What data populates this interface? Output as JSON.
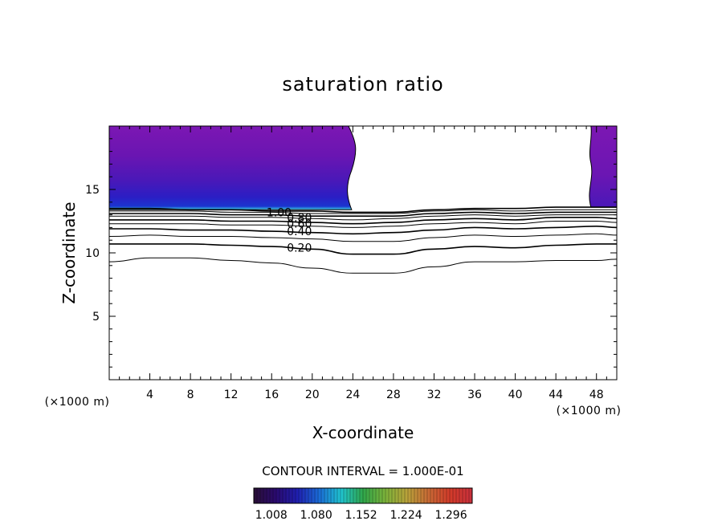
{
  "chart_data": {
    "type": "contour",
    "title": "saturation ratio",
    "xlabel": "X-coordinate",
    "ylabel": "Z-coordinate",
    "x_unit": "(×1000 m)",
    "y_unit": "(×1000 m)",
    "xlim": [
      0,
      50
    ],
    "ylim": [
      0,
      20
    ],
    "x_ticks": [
      4,
      8,
      12,
      16,
      20,
      24,
      28,
      32,
      36,
      40,
      44,
      48
    ],
    "y_ticks": [
      5,
      10,
      15
    ],
    "contour_interval_text": "CONTOUR INTERVAL = 1.000E-01",
    "contour_labels": [
      {
        "text": "1.00",
        "x": 15.5,
        "z": 13.2
      },
      {
        "text": "0.80",
        "x": 17.5,
        "z": 12.8
      },
      {
        "text": "0.60",
        "x": 17.5,
        "z": 12.3
      },
      {
        "text": "0.40",
        "x": 17.5,
        "z": 11.7
      },
      {
        "text": "0.20",
        "x": 17.5,
        "z": 10.4
      }
    ],
    "contour_lines": [
      {
        "level": 0.1,
        "points": [
          [
            0,
            9.3
          ],
          [
            4,
            9.6
          ],
          [
            8,
            9.6
          ],
          [
            12,
            9.4
          ],
          [
            16,
            9.2
          ],
          [
            20,
            8.8
          ],
          [
            24,
            8.4
          ],
          [
            28,
            8.4
          ],
          [
            32,
            8.9
          ],
          [
            36,
            9.3
          ],
          [
            40,
            9.3
          ],
          [
            44,
            9.4
          ],
          [
            48,
            9.4
          ],
          [
            50,
            9.5
          ]
        ]
      },
      {
        "level": 0.2,
        "points": [
          [
            0,
            10.7
          ],
          [
            4,
            10.7
          ],
          [
            8,
            10.7
          ],
          [
            12,
            10.6
          ],
          [
            16,
            10.5
          ],
          [
            20,
            10.3
          ],
          [
            24,
            9.9
          ],
          [
            28,
            9.9
          ],
          [
            32,
            10.3
          ],
          [
            36,
            10.5
          ],
          [
            40,
            10.4
          ],
          [
            44,
            10.6
          ],
          [
            48,
            10.7
          ],
          [
            50,
            10.7
          ]
        ]
      },
      {
        "level": 0.3,
        "points": [
          [
            0,
            11.3
          ],
          [
            4,
            11.4
          ],
          [
            8,
            11.3
          ],
          [
            12,
            11.3
          ],
          [
            16,
            11.2
          ],
          [
            20,
            11.1
          ],
          [
            24,
            10.9
          ],
          [
            28,
            10.9
          ],
          [
            32,
            11.2
          ],
          [
            36,
            11.4
          ],
          [
            40,
            11.3
          ],
          [
            44,
            11.4
          ],
          [
            48,
            11.5
          ],
          [
            50,
            11.4
          ]
        ]
      },
      {
        "level": 0.4,
        "points": [
          [
            0,
            11.9
          ],
          [
            4,
            11.9
          ],
          [
            8,
            11.8
          ],
          [
            12,
            11.8
          ],
          [
            16,
            11.7
          ],
          [
            20,
            11.6
          ],
          [
            24,
            11.5
          ],
          [
            28,
            11.6
          ],
          [
            32,
            11.8
          ],
          [
            36,
            12.0
          ],
          [
            40,
            11.9
          ],
          [
            44,
            12.0
          ],
          [
            48,
            12.1
          ],
          [
            50,
            12.0
          ]
        ]
      },
      {
        "level": 0.5,
        "points": [
          [
            0,
            12.3
          ],
          [
            4,
            12.3
          ],
          [
            8,
            12.3
          ],
          [
            12,
            12.2
          ],
          [
            16,
            12.2
          ],
          [
            20,
            12.1
          ],
          [
            24,
            12.0
          ],
          [
            28,
            12.1
          ],
          [
            32,
            12.3
          ],
          [
            36,
            12.4
          ],
          [
            40,
            12.3
          ],
          [
            44,
            12.5
          ],
          [
            48,
            12.5
          ],
          [
            50,
            12.4
          ]
        ]
      },
      {
        "level": 0.6,
        "points": [
          [
            0,
            12.6
          ],
          [
            4,
            12.6
          ],
          [
            8,
            12.6
          ],
          [
            12,
            12.5
          ],
          [
            16,
            12.5
          ],
          [
            20,
            12.4
          ],
          [
            24,
            12.3
          ],
          [
            28,
            12.4
          ],
          [
            32,
            12.6
          ],
          [
            36,
            12.7
          ],
          [
            40,
            12.6
          ],
          [
            44,
            12.8
          ],
          [
            48,
            12.8
          ],
          [
            50,
            12.7
          ]
        ]
      },
      {
        "level": 0.7,
        "points": [
          [
            0,
            12.9
          ],
          [
            4,
            12.9
          ],
          [
            8,
            12.9
          ],
          [
            12,
            12.8
          ],
          [
            16,
            12.8
          ],
          [
            20,
            12.7
          ],
          [
            24,
            12.6
          ],
          [
            28,
            12.7
          ],
          [
            32,
            12.9
          ],
          [
            36,
            13.0
          ],
          [
            40,
            12.9
          ],
          [
            44,
            13.0
          ],
          [
            48,
            13.0
          ],
          [
            50,
            13.0
          ]
        ]
      },
      {
        "level": 0.8,
        "points": [
          [
            0,
            13.1
          ],
          [
            4,
            13.1
          ],
          [
            8,
            13.1
          ],
          [
            12,
            13.0
          ],
          [
            16,
            13.0
          ],
          [
            20,
            12.9
          ],
          [
            24,
            12.9
          ],
          [
            28,
            12.9
          ],
          [
            32,
            13.1
          ],
          [
            36,
            13.2
          ],
          [
            40,
            13.1
          ],
          [
            44,
            13.2
          ],
          [
            48,
            13.2
          ],
          [
            50,
            13.2
          ]
        ]
      },
      {
        "level": 0.9,
        "points": [
          [
            0,
            13.3
          ],
          [
            4,
            13.3
          ],
          [
            8,
            13.3
          ],
          [
            12,
            13.2
          ],
          [
            16,
            13.2
          ],
          [
            20,
            13.1
          ],
          [
            24,
            13.1
          ],
          [
            28,
            13.1
          ],
          [
            32,
            13.3
          ],
          [
            36,
            13.4
          ],
          [
            40,
            13.3
          ],
          [
            44,
            13.4
          ],
          [
            48,
            13.4
          ],
          [
            50,
            13.4
          ]
        ]
      },
      {
        "level": 1.0,
        "points": [
          [
            0,
            13.5
          ],
          [
            4,
            13.5
          ],
          [
            8,
            13.4
          ],
          [
            12,
            13.4
          ],
          [
            16,
            13.3
          ],
          [
            20,
            13.3
          ],
          [
            24,
            13.2
          ],
          [
            28,
            13.2
          ],
          [
            32,
            13.4
          ],
          [
            36,
            13.5
          ],
          [
            40,
            13.5
          ],
          [
            44,
            13.6
          ],
          [
            48,
            13.6
          ],
          [
            50,
            13.6
          ]
        ]
      }
    ],
    "colorbar": {
      "ticks": [
        "1.008",
        "1.080",
        "1.152",
        "1.224",
        "1.296"
      ],
      "tick_values": [
        1.008,
        1.08,
        1.152,
        1.224,
        1.296
      ],
      "range": [
        0.98,
        1.33
      ],
      "colors": [
        "#2a0f36",
        "#2a0a6e",
        "#1f1fb0",
        "#1a6cd6",
        "#20c4cf",
        "#2fa64a",
        "#7ab23a",
        "#b8a23a",
        "#c86a35",
        "#d23a2a",
        "#c8303c"
      ]
    },
    "supersaturated_regions": [
      {
        "x": [
          0,
          24.2
        ],
        "z_bottom": 13.4,
        "z_top": 20
      },
      {
        "x": [
          47.3,
          50
        ],
        "z_bottom": 13.6,
        "z_top": 20
      }
    ]
  }
}
